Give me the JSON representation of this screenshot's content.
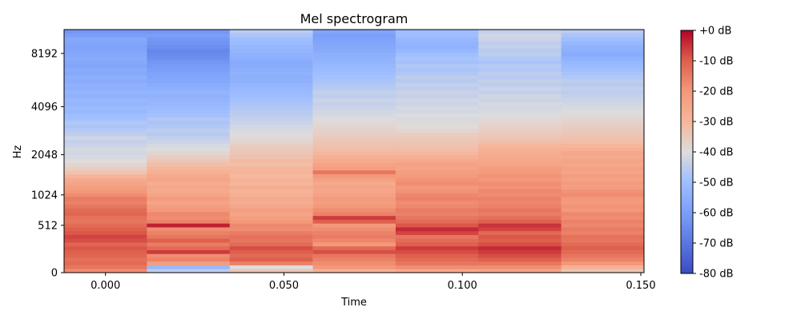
{
  "chart_data": {
    "type": "heatmap",
    "title": "Mel spectrogram",
    "xlabel": "Time",
    "ylabel": "Hz",
    "x_ticks": [
      {
        "value": 0.0,
        "label": "0.000"
      },
      {
        "value": 0.05,
        "label": "0.050"
      },
      {
        "value": 0.1,
        "label": "0.100"
      },
      {
        "value": 0.15,
        "label": "0.150"
      }
    ],
    "y_ticks": [
      {
        "value": 0,
        "label": "0"
      },
      {
        "value": 512,
        "label": "512"
      },
      {
        "value": 1024,
        "label": "1024"
      },
      {
        "value": 2048,
        "label": "2048"
      },
      {
        "value": 4096,
        "label": "4096"
      },
      {
        "value": 8192,
        "label": "8192"
      }
    ],
    "x_range": [
      -0.0116,
      0.1509
    ],
    "y_range_hz": [
      0,
      11025
    ],
    "y_scale": "mel",
    "frame_times": [
      0.0,
      0.0232,
      0.0464,
      0.0697,
      0.0929,
      0.1161,
      0.1393
    ],
    "colorbar": {
      "cmap": "coolwarm",
      "range": [
        -80,
        0
      ],
      "ticks": [
        {
          "value": 0,
          "label": "+0 dB"
        },
        {
          "value": -10,
          "label": "-10 dB"
        },
        {
          "value": -20,
          "label": "-20 dB"
        },
        {
          "value": -30,
          "label": "-30 dB"
        },
        {
          "value": -40,
          "label": "-40 dB"
        },
        {
          "value": -50,
          "label": "-50 dB"
        },
        {
          "value": -60,
          "label": "-60 dB"
        },
        {
          "value": -70,
          "label": "-70 dB"
        },
        {
          "value": -80,
          "label": "-80 dB"
        }
      ]
    },
    "frames_db_low_to_high": [
      [
        -18,
        -14,
        -12,
        -13,
        -11,
        -10,
        -9,
        -11,
        -8,
        -7,
        -9,
        -10,
        -12,
        -14,
        -13,
        -11,
        -12,
        -14,
        -16,
        -15,
        -18,
        -20,
        -22,
        -24,
        -26,
        -30,
        -34,
        -36,
        -38,
        -40,
        -41,
        -42,
        -41,
        -43,
        -44,
        -42,
        -45,
        -46,
        -48,
        -47,
        -49,
        -50,
        -52,
        -51,
        -53,
        -52,
        -54,
        -53,
        -55,
        -54,
        -56,
        -55,
        -57,
        -56,
        -58,
        -57,
        -56,
        -57,
        -58,
        -59,
        -58,
        -57,
        -60,
        -62
      ],
      [
        -45,
        -52,
        -22,
        -16,
        -18,
        -6,
        -12,
        -15,
        -10,
        -14,
        -16,
        -18,
        -3,
        -16,
        -18,
        -17,
        -20,
        -22,
        -24,
        -21,
        -24,
        -26,
        -25,
        -27,
        -24,
        -26,
        -28,
        -30,
        -32,
        -34,
        -36,
        -38,
        -40,
        -41,
        -43,
        -44,
        -46,
        -45,
        -47,
        -48,
        -47,
        -49,
        -50,
        -51,
        -52,
        -53,
        -54,
        -53,
        -55,
        -56,
        -57,
        -58,
        -59,
        -60,
        -61,
        -62,
        -64,
        -65,
        -66,
        -64,
        -63,
        -62,
        -60,
        -62
      ],
      [
        -34,
        -40,
        -16,
        -10,
        -12,
        -10,
        -8,
        -12,
        -14,
        -13,
        -15,
        -18,
        -17,
        -20,
        -22,
        -24,
        -22,
        -25,
        -27,
        -26,
        -28,
        -29,
        -27,
        -30,
        -28,
        -31,
        -29,
        -30,
        -32,
        -31,
        -33,
        -34,
        -35,
        -36,
        -38,
        -39,
        -40,
        -41,
        -42,
        -43,
        -44,
        -45,
        -46,
        -47,
        -48,
        -49,
        -50,
        -51,
        -52,
        -53,
        -54,
        -55,
        -54,
        -55,
        -56,
        -56,
        -55,
        -54,
        -53,
        -52,
        -51,
        -50,
        -48,
        -46
      ],
      [
        -28,
        -20,
        -18,
        -16,
        -14,
        -8,
        -12,
        -20,
        -17,
        -15,
        -16,
        -18,
        -20,
        -10,
        -6,
        -16,
        -18,
        -20,
        -22,
        -21,
        -23,
        -25,
        -24,
        -26,
        -23,
        -20,
        -14,
        -22,
        -24,
        -26,
        -28,
        -30,
        -32,
        -33,
        -34,
        -35,
        -36,
        -37,
        -38,
        -39,
        -40,
        -41,
        -42,
        -43,
        -44,
        -43,
        -45,
        -44,
        -46,
        -47,
        -48,
        -49,
        -50,
        -51,
        -52,
        -53,
        -54,
        -55,
        -56,
        -57,
        -58,
        -59,
        -60,
        -58
      ],
      [
        -26,
        -18,
        -14,
        -12,
        -10,
        -8,
        -6,
        -10,
        -12,
        -14,
        -7,
        -4,
        -9,
        -12,
        -14,
        -16,
        -15,
        -17,
        -18,
        -16,
        -17,
        -19,
        -20,
        -18,
        -19,
        -21,
        -22,
        -24,
        -23,
        -26,
        -28,
        -30,
        -32,
        -33,
        -34,
        -35,
        -36,
        -38,
        -40,
        -39,
        -41,
        -40,
        -42,
        -41,
        -43,
        -42,
        -44,
        -43,
        -45,
        -44,
        -46,
        -45,
        -47,
        -48,
        -47,
        -49,
        -48,
        -50,
        -52,
        -54,
        -53,
        -52,
        -50,
        -50
      ],
      [
        -24,
        -18,
        -14,
        -10,
        -8,
        -6,
        -4,
        -8,
        -10,
        -9,
        -12,
        -7,
        -5,
        -10,
        -13,
        -15,
        -14,
        -16,
        -17,
        -16,
        -18,
        -17,
        -19,
        -18,
        -20,
        -19,
        -21,
        -22,
        -24,
        -25,
        -26,
        -27,
        -28,
        -30,
        -32,
        -34,
        -35,
        -36,
        -37,
        -38,
        -39,
        -40,
        -41,
        -42,
        -41,
        -43,
        -42,
        -44,
        -43,
        -45,
        -44,
        -46,
        -45,
        -47,
        -46,
        -48,
        -47,
        -45,
        -46,
        -44,
        -45,
        -43,
        -42,
        -44
      ],
      [
        -34,
        -28,
        -20,
        -16,
        -14,
        -12,
        -10,
        -12,
        -14,
        -13,
        -16,
        -15,
        -17,
        -16,
        -18,
        -17,
        -20,
        -19,
        -21,
        -20,
        -18,
        -19,
        -22,
        -21,
        -23,
        -22,
        -24,
        -23,
        -25,
        -24,
        -26,
        -25,
        -28,
        -30,
        -32,
        -33,
        -34,
        -35,
        -36,
        -37,
        -38,
        -39,
        -40,
        -41,
        -42,
        -43,
        -44,
        -45,
        -44,
        -46,
        -45,
        -47,
        -48,
        -50,
        -51,
        -52,
        -54,
        -56,
        -55,
        -54,
        -52,
        -50,
        -48,
        -46
      ]
    ]
  }
}
